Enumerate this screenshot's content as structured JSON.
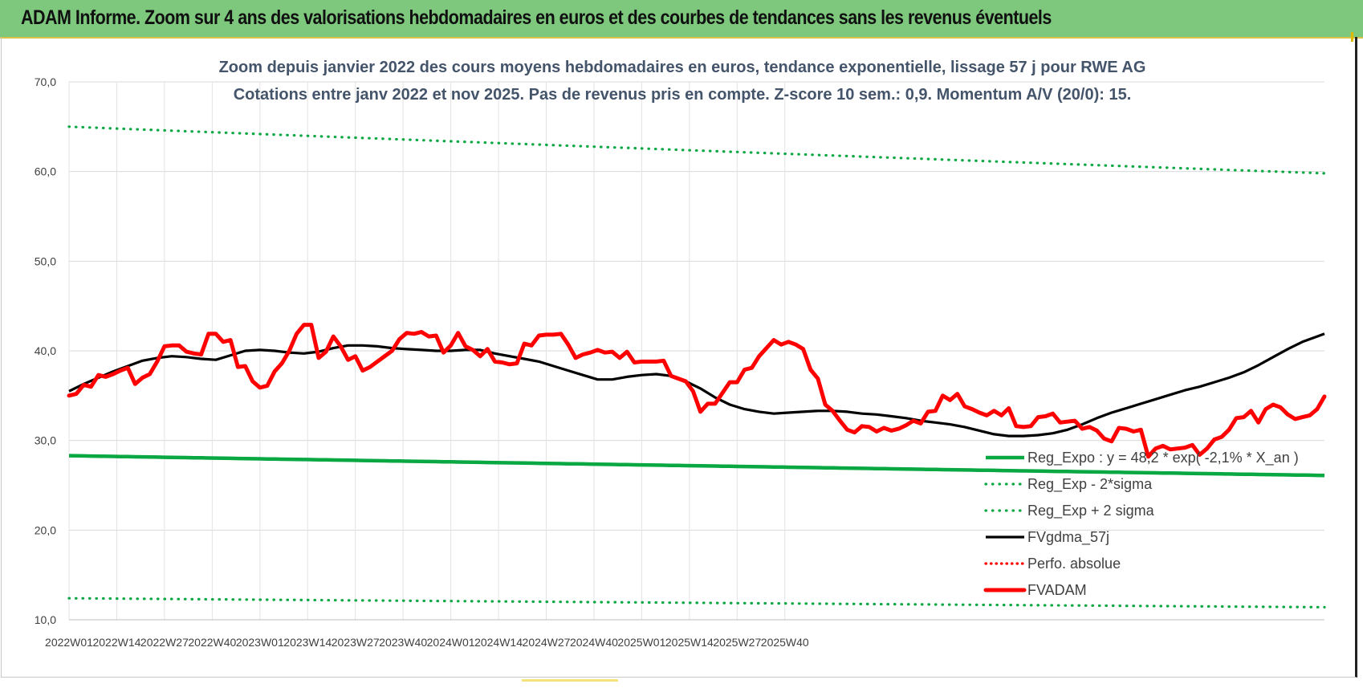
{
  "header": {
    "title": "ADAM Informe. Zoom sur 4 ans des valorisations hebdomadaires en euros et des courbes de tendances sans les revenus éventuels"
  },
  "chart_data": {
    "type": "line",
    "subtitle_lines": [
      "Zoom depuis janvier 2022 des cours moyens hebdomadaires en euros, tendance exponentielle, lissage 57 j pour RWE AG",
      "Cotations entre janv 2022 et nov 2025. Pas de revenus pris en compte. Z-score 10 sem.: 0,9. Momentum A/V (20/0): 15."
    ],
    "ylim": [
      10,
      70
    ],
    "yticks": [
      "10,0",
      "20,0",
      "30,0",
      "40,0",
      "50,0",
      "60,0",
      "70,0"
    ],
    "xticks": [
      "2022W01",
      "2022W14",
      "2022W27",
      "2022W40",
      "2023W01",
      "2023W14",
      "2023W27",
      "2023W40",
      "2024W01",
      "2024W14",
      "2024W27",
      "2024W40",
      "2025W01",
      "2025W14",
      "2025W27",
      "2025W40"
    ],
    "grid": true,
    "legend_position": "bottom-right",
    "colors": {
      "trend": "#0aa843",
      "black": "#000000",
      "red": "#ff0000"
    },
    "series": [
      {
        "name": "Reg_Expo : y = 48,2 * exp( -2,1% *  X_an )",
        "style": "solid-green",
        "values": [
          [
            0,
            28.3
          ],
          [
            204,
            26.1
          ]
        ]
      },
      {
        "name": "Reg_Exp - 2*sigma",
        "style": "dotted-green",
        "values": [
          [
            0,
            12.4
          ],
          [
            204,
            11.4
          ]
        ]
      },
      {
        "name": "Reg_Exp + 2 sigma",
        "style": "dotted-green",
        "values": [
          [
            0,
            65.0
          ],
          [
            204,
            59.8
          ]
        ]
      },
      {
        "name": "FVgdma_57j",
        "style": "solid-black",
        "values": [
          [
            0,
            35.5
          ],
          [
            4,
            36.3
          ],
          [
            8,
            37.0
          ],
          [
            12,
            37.7
          ],
          [
            16,
            38.3
          ],
          [
            20,
            38.9
          ],
          [
            24,
            39.2
          ],
          [
            28,
            39.4
          ],
          [
            32,
            39.3
          ],
          [
            36,
            39.1
          ],
          [
            40,
            39.0
          ],
          [
            44,
            39.5
          ],
          [
            48,
            40.0
          ],
          [
            52,
            40.1
          ],
          [
            56,
            40.0
          ],
          [
            60,
            39.8
          ],
          [
            64,
            39.7
          ],
          [
            68,
            39.9
          ],
          [
            72,
            40.3
          ],
          [
            76,
            40.6
          ],
          [
            80,
            40.6
          ],
          [
            84,
            40.5
          ],
          [
            88,
            40.3
          ],
          [
            92,
            40.2
          ],
          [
            96,
            40.1
          ],
          [
            100,
            40.0
          ],
          [
            104,
            40.0
          ],
          [
            108,
            40.1
          ],
          [
            112,
            40.1
          ],
          [
            116,
            39.7
          ],
          [
            120,
            39.4
          ],
          [
            124,
            39.1
          ],
          [
            128,
            38.8
          ],
          [
            132,
            38.3
          ],
          [
            136,
            37.8
          ],
          [
            140,
            37.3
          ],
          [
            144,
            36.8
          ],
          [
            148,
            36.8
          ],
          [
            152,
            37.1
          ],
          [
            156,
            37.3
          ],
          [
            160,
            37.4
          ],
          [
            164,
            37.2
          ],
          [
            168,
            36.6
          ],
          [
            172,
            35.8
          ],
          [
            176,
            34.8
          ],
          [
            180,
            34.0
          ],
          [
            184,
            33.5
          ],
          [
            188,
            33.2
          ],
          [
            192,
            33.0
          ],
          [
            196,
            33.1
          ],
          [
            200,
            33.2
          ],
          [
            204,
            33.3
          ],
          [
            208,
            33.3
          ],
          [
            212,
            33.2
          ],
          [
            216,
            33.0
          ],
          [
            220,
            32.9
          ],
          [
            224,
            32.7
          ],
          [
            228,
            32.5
          ],
          [
            232,
            32.2
          ],
          [
            236,
            32.0
          ],
          [
            240,
            31.8
          ],
          [
            244,
            31.5
          ],
          [
            248,
            31.1
          ],
          [
            252,
            30.7
          ],
          [
            256,
            30.5
          ],
          [
            260,
            30.5
          ],
          [
            264,
            30.6
          ],
          [
            268,
            30.8
          ],
          [
            272,
            31.2
          ],
          [
            276,
            31.8
          ],
          [
            280,
            32.5
          ],
          [
            284,
            33.1
          ],
          [
            288,
            33.6
          ],
          [
            292,
            34.1
          ],
          [
            296,
            34.6
          ],
          [
            300,
            35.1
          ],
          [
            304,
            35.6
          ],
          [
            308,
            36.0
          ],
          [
            312,
            36.5
          ],
          [
            316,
            37.0
          ],
          [
            320,
            37.6
          ],
          [
            324,
            38.4
          ],
          [
            328,
            39.3
          ],
          [
            332,
            40.2
          ],
          [
            336,
            41.0
          ],
          [
            340,
            41.6
          ],
          [
            342,
            41.9
          ]
        ]
      },
      {
        "name": "Perfo. absolue",
        "style": "dotted-red",
        "values": []
      },
      {
        "name": "FVADAM",
        "style": "thick-red",
        "values": [
          [
            0,
            35.0
          ],
          [
            2,
            35.2
          ],
          [
            4,
            36.2
          ],
          [
            6,
            36.0
          ],
          [
            8,
            37.3
          ],
          [
            10,
            37.1
          ],
          [
            12,
            37.4
          ],
          [
            14,
            37.8
          ],
          [
            16,
            38.1
          ],
          [
            18,
            36.3
          ],
          [
            20,
            37.0
          ],
          [
            22,
            37.4
          ],
          [
            24,
            38.8
          ],
          [
            26,
            40.5
          ],
          [
            28,
            40.6
          ],
          [
            30,
            40.6
          ],
          [
            32,
            39.9
          ],
          [
            34,
            39.7
          ],
          [
            36,
            39.6
          ],
          [
            38,
            41.9
          ],
          [
            40,
            41.9
          ],
          [
            42,
            41.0
          ],
          [
            44,
            41.2
          ],
          [
            46,
            38.2
          ],
          [
            48,
            38.3
          ],
          [
            50,
            36.6
          ],
          [
            52,
            35.9
          ],
          [
            54,
            36.1
          ],
          [
            56,
            37.7
          ],
          [
            58,
            38.6
          ],
          [
            60,
            40.0
          ],
          [
            62,
            41.9
          ],
          [
            64,
            42.9
          ],
          [
            66,
            42.9
          ],
          [
            68,
            39.2
          ],
          [
            70,
            39.9
          ],
          [
            72,
            41.6
          ],
          [
            74,
            40.5
          ],
          [
            76,
            39.0
          ],
          [
            78,
            39.4
          ],
          [
            80,
            37.8
          ],
          [
            82,
            38.2
          ],
          [
            84,
            38.8
          ],
          [
            86,
            39.4
          ],
          [
            88,
            40.0
          ],
          [
            90,
            41.3
          ],
          [
            92,
            42.0
          ],
          [
            94,
            41.9
          ],
          [
            96,
            42.1
          ],
          [
            98,
            41.6
          ],
          [
            100,
            41.7
          ],
          [
            102,
            39.8
          ],
          [
            104,
            40.6
          ],
          [
            106,
            42.0
          ],
          [
            108,
            40.5
          ],
          [
            110,
            40.1
          ],
          [
            112,
            39.4
          ],
          [
            114,
            40.2
          ],
          [
            116,
            38.8
          ],
          [
            118,
            38.7
          ],
          [
            120,
            38.5
          ],
          [
            122,
            38.6
          ],
          [
            124,
            40.8
          ],
          [
            126,
            40.6
          ],
          [
            128,
            41.7
          ],
          [
            130,
            41.8
          ],
          [
            132,
            41.8
          ],
          [
            134,
            41.9
          ],
          [
            136,
            40.7
          ],
          [
            138,
            39.2
          ],
          [
            140,
            39.6
          ],
          [
            142,
            39.8
          ],
          [
            144,
            40.1
          ],
          [
            146,
            39.8
          ],
          [
            148,
            39.9
          ],
          [
            150,
            39.2
          ],
          [
            152,
            39.9
          ],
          [
            154,
            38.7
          ],
          [
            156,
            38.8
          ],
          [
            158,
            38.8
          ],
          [
            160,
            38.8
          ],
          [
            162,
            38.9
          ],
          [
            164,
            37.2
          ],
          [
            166,
            36.9
          ],
          [
            168,
            36.6
          ],
          [
            170,
            35.5
          ],
          [
            172,
            33.2
          ],
          [
            174,
            34.1
          ],
          [
            176,
            34.1
          ],
          [
            178,
            35.3
          ],
          [
            180,
            36.5
          ],
          [
            182,
            36.5
          ],
          [
            184,
            37.9
          ],
          [
            186,
            38.1
          ],
          [
            188,
            39.4
          ],
          [
            190,
            40.3
          ],
          [
            192,
            41.2
          ],
          [
            194,
            40.7
          ],
          [
            196,
            41.0
          ],
          [
            198,
            40.7
          ],
          [
            200,
            40.2
          ],
          [
            202,
            37.9
          ],
          [
            204,
            36.9
          ],
          [
            206,
            34.0
          ],
          [
            208,
            33.3
          ],
          [
            210,
            32.2
          ],
          [
            212,
            31.2
          ],
          [
            214,
            30.9
          ],
          [
            216,
            31.6
          ],
          [
            218,
            31.5
          ],
          [
            220,
            31.0
          ],
          [
            222,
            31.4
          ],
          [
            224,
            31.1
          ],
          [
            226,
            31.3
          ],
          [
            228,
            31.7
          ],
          [
            230,
            32.2
          ],
          [
            232,
            31.9
          ],
          [
            234,
            33.2
          ],
          [
            236,
            33.3
          ],
          [
            238,
            35.0
          ],
          [
            240,
            34.5
          ],
          [
            242,
            35.2
          ],
          [
            244,
            33.8
          ],
          [
            246,
            33.5
          ],
          [
            248,
            33.1
          ],
          [
            250,
            32.8
          ],
          [
            252,
            33.3
          ],
          [
            254,
            32.8
          ],
          [
            256,
            33.6
          ],
          [
            258,
            31.6
          ],
          [
            260,
            31.5
          ],
          [
            262,
            31.6
          ],
          [
            264,
            32.6
          ],
          [
            266,
            32.7
          ],
          [
            268,
            33.0
          ],
          [
            270,
            32.0
          ],
          [
            272,
            32.1
          ],
          [
            274,
            32.2
          ],
          [
            276,
            31.3
          ],
          [
            278,
            31.5
          ],
          [
            280,
            31.1
          ],
          [
            282,
            30.2
          ],
          [
            284,
            29.9
          ],
          [
            286,
            31.4
          ],
          [
            288,
            31.3
          ],
          [
            290,
            31.0
          ],
          [
            292,
            31.2
          ],
          [
            294,
            28.2
          ],
          [
            296,
            29.1
          ],
          [
            298,
            29.4
          ],
          [
            300,
            29.0
          ],
          [
            302,
            29.1
          ],
          [
            304,
            29.2
          ],
          [
            306,
            29.5
          ],
          [
            308,
            28.4
          ],
          [
            310,
            29.1
          ],
          [
            312,
            30.1
          ],
          [
            314,
            30.4
          ],
          [
            316,
            31.2
          ],
          [
            318,
            32.5
          ],
          [
            320,
            32.6
          ],
          [
            322,
            33.3
          ],
          [
            324,
            32.0
          ],
          [
            326,
            33.5
          ],
          [
            328,
            34.0
          ],
          [
            330,
            33.7
          ],
          [
            332,
            32.9
          ],
          [
            334,
            32.4
          ],
          [
            336,
            32.6
          ],
          [
            338,
            32.8
          ],
          [
            340,
            33.5
          ],
          [
            342,
            34.9
          ]
        ]
      }
    ]
  }
}
